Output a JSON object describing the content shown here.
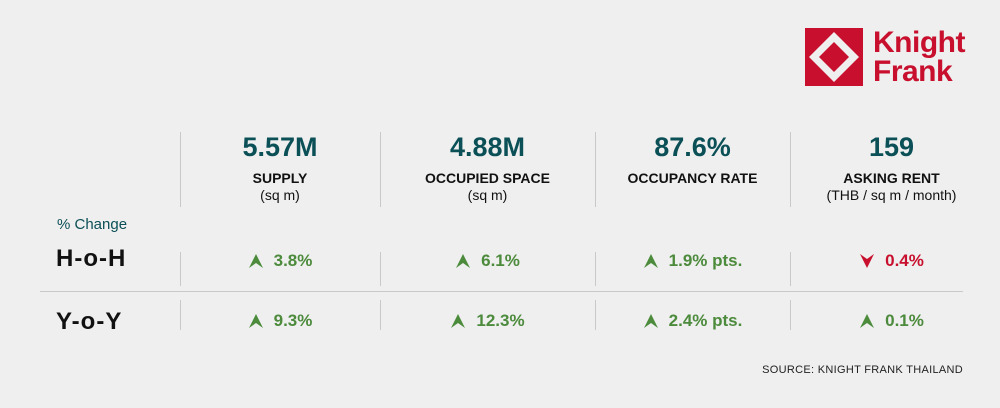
{
  "brand": {
    "line1": "Knight",
    "line2": "Frank",
    "color": "#c8102e"
  },
  "metrics": [
    {
      "value": "5.57M",
      "label": "SUPPLY",
      "unit": "(sq m)"
    },
    {
      "value": "4.88M",
      "label": "OCCUPIED SPACE",
      "unit": "(sq m)"
    },
    {
      "value": "87.6%",
      "label": "OCCUPANCY RATE",
      "unit": ""
    },
    {
      "value": "159",
      "label": "ASKING RENT",
      "unit": "(THB / sq m / month)"
    }
  ],
  "change_label": "% Change",
  "rows": [
    {
      "label": "H-o-H",
      "values": [
        {
          "text": "3.8%",
          "direction": "up"
        },
        {
          "text": "6.1%",
          "direction": "up"
        },
        {
          "text": "1.9% pts.",
          "direction": "up"
        },
        {
          "text": "0.4%",
          "direction": "down"
        }
      ]
    },
    {
      "label": "Y-o-Y",
      "values": [
        {
          "text": "9.3%",
          "direction": "up"
        },
        {
          "text": "12.3%",
          "direction": "up"
        },
        {
          "text": "2.4% pts.",
          "direction": "up"
        },
        {
          "text": "0.1%",
          "direction": "up"
        }
      ]
    }
  ],
  "source": "SOURCE: KNIGHT FRANK THAILAND",
  "colors": {
    "accent": "#0b4f57",
    "up": "#4c8a3c",
    "down": "#c8102e",
    "background": "#eeefee"
  }
}
